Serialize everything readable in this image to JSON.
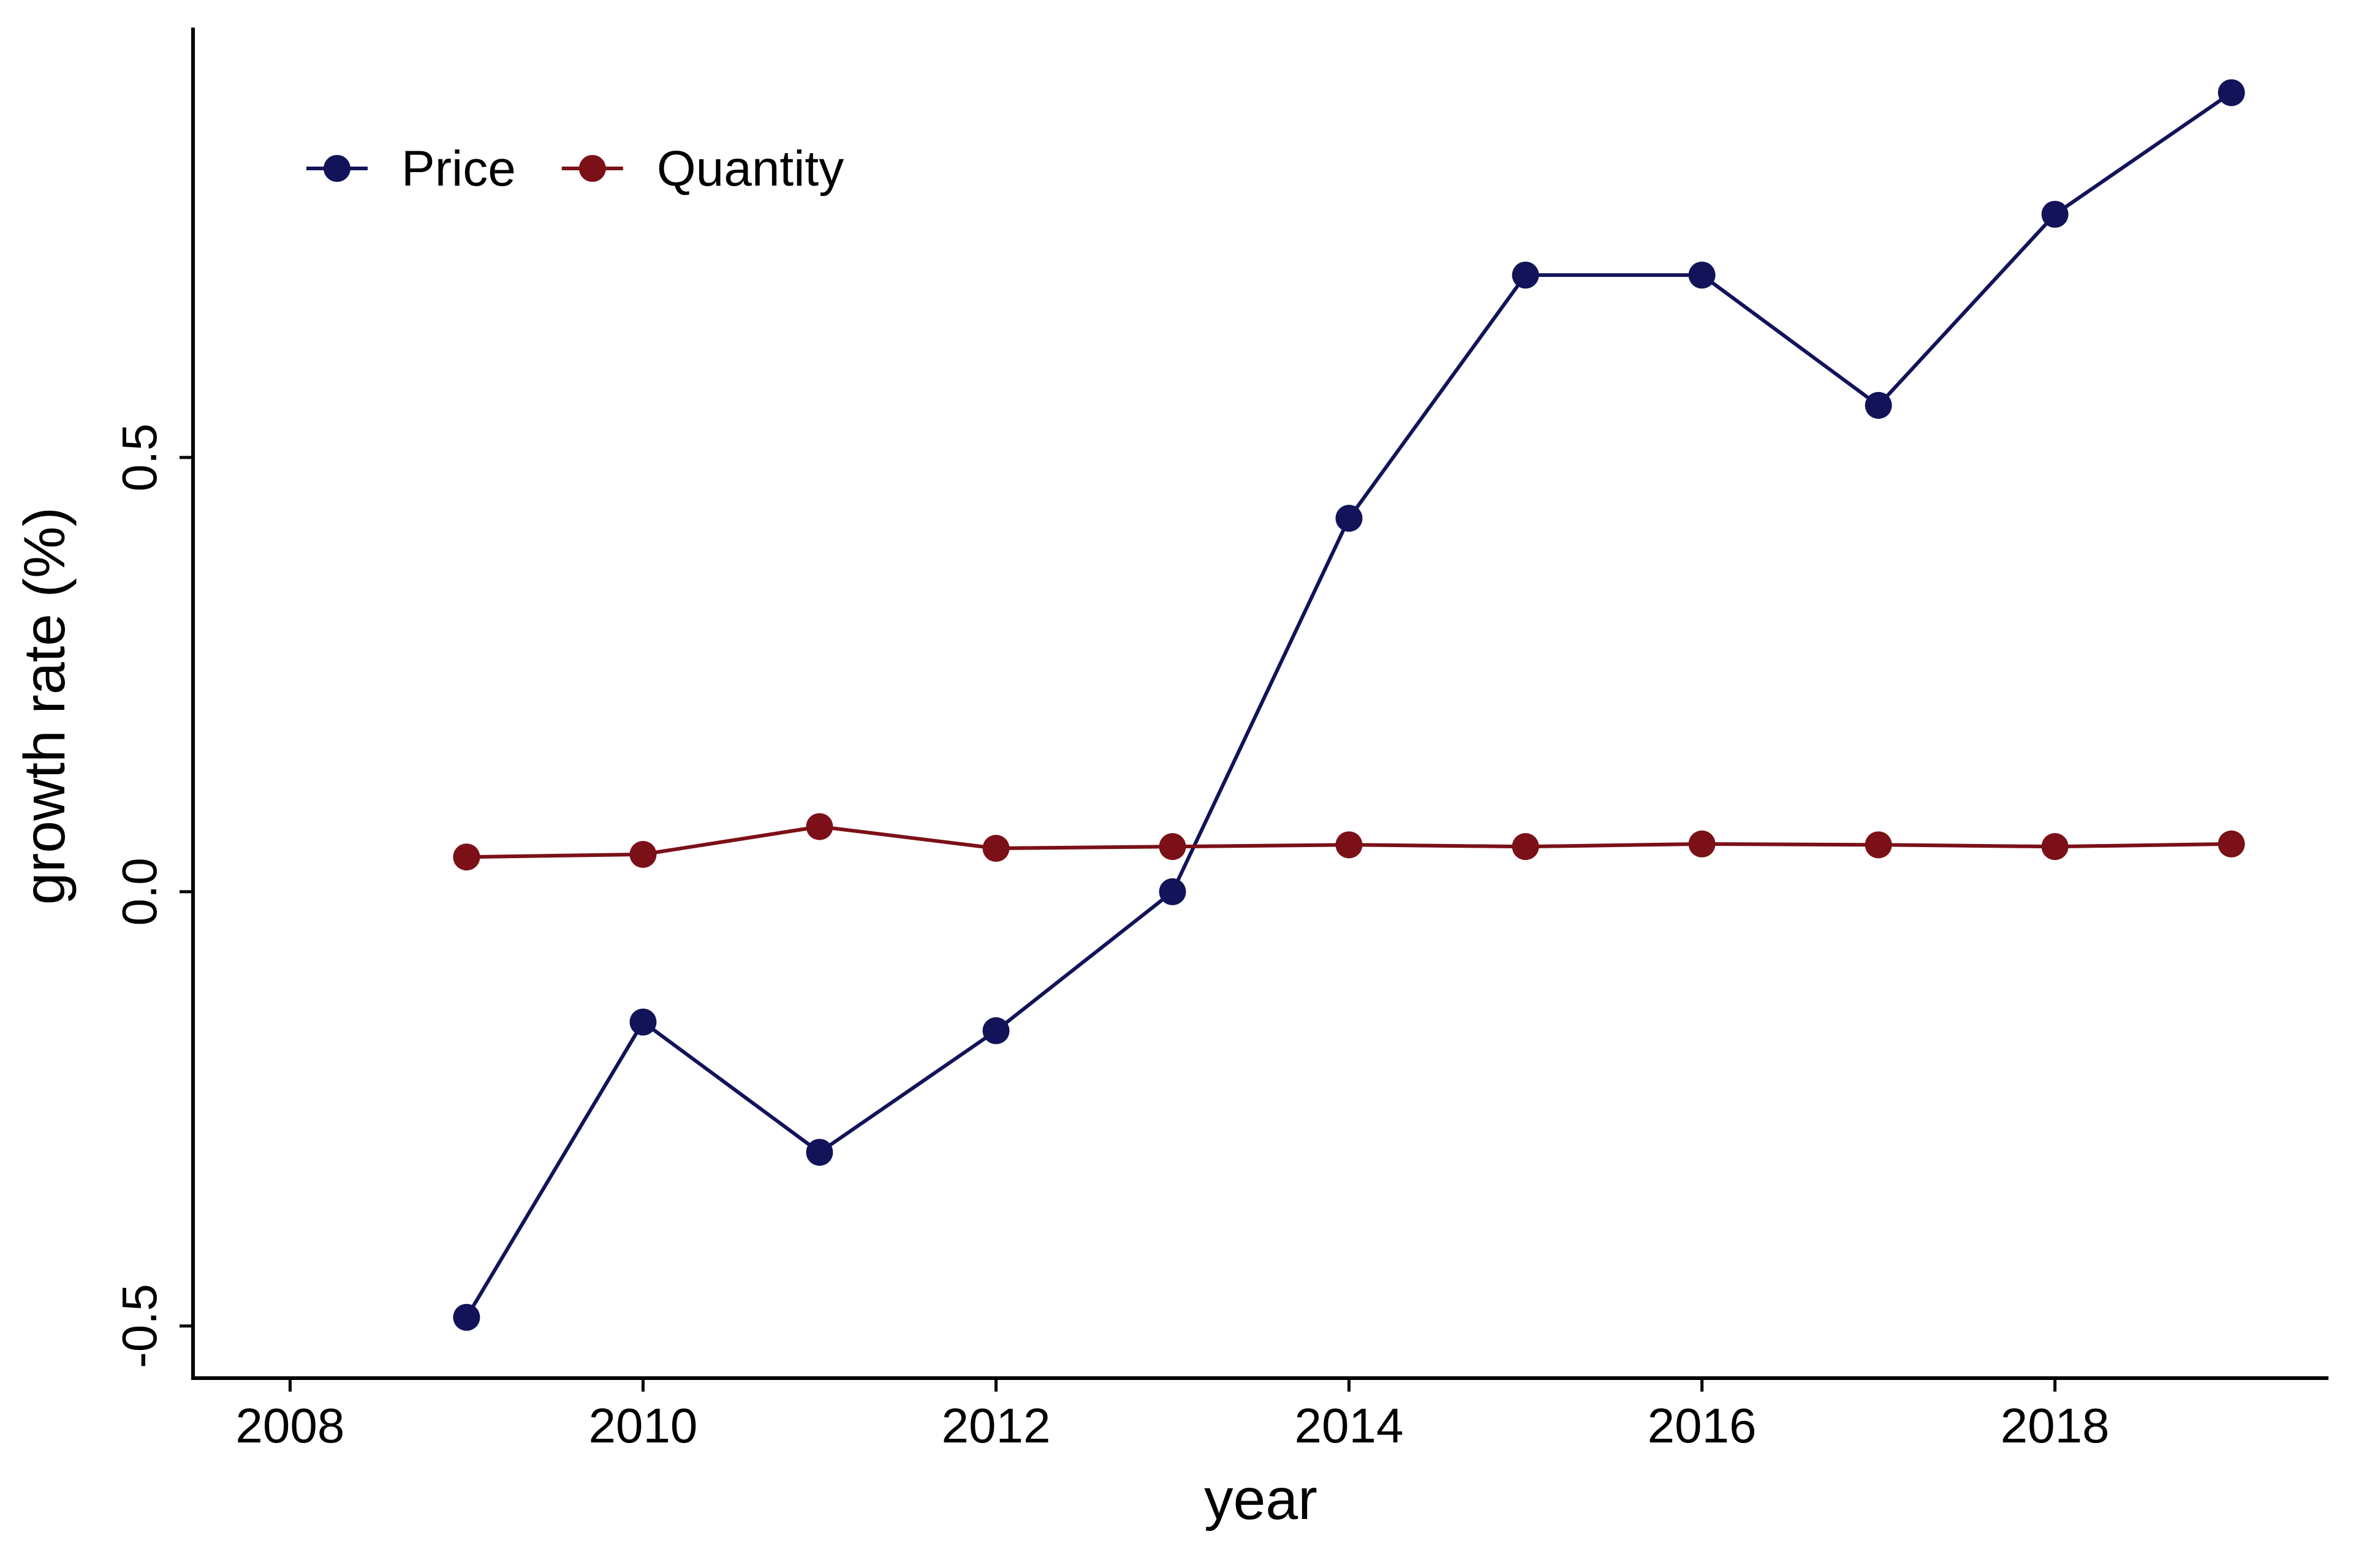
{
  "colors": {
    "background": "#ffffff",
    "axis": "#000000",
    "price": "#13135a",
    "quantity": "#7b1018"
  },
  "chart_data": {
    "type": "line",
    "title": "",
    "xlabel": "year",
    "ylabel": "growth rate (%)",
    "xlim": [
      2007.45,
      2019.55
    ],
    "ylim": [
      -0.56,
      0.995
    ],
    "xticks": [
      2008,
      2010,
      2012,
      2014,
      2016,
      2018
    ],
    "xtick_labels": [
      "2008",
      "2010",
      "2012",
      "2014",
      "2016",
      "2018"
    ],
    "yticks": [
      -0.5,
      0.0,
      0.5
    ],
    "ytick_labels": [
      "-0.5",
      "0.0",
      "0.5"
    ],
    "grid": false,
    "legend_position": "top-left",
    "x": [
      2009,
      2010,
      2011,
      2012,
      2013,
      2014,
      2015,
      2016,
      2017,
      2018,
      2019
    ],
    "series": [
      {
        "name": "Price",
        "color": "#13135a",
        "values": [
          -0.49,
          -0.15,
          -0.3,
          -0.16,
          0.0,
          0.43,
          0.71,
          0.71,
          0.56,
          0.78,
          0.92
        ]
      },
      {
        "name": "Quantity",
        "color": "#7b1018",
        "values": [
          0.04,
          0.043,
          0.075,
          0.05,
          0.052,
          0.054,
          0.052,
          0.055,
          0.054,
          0.052,
          0.055
        ]
      }
    ]
  }
}
